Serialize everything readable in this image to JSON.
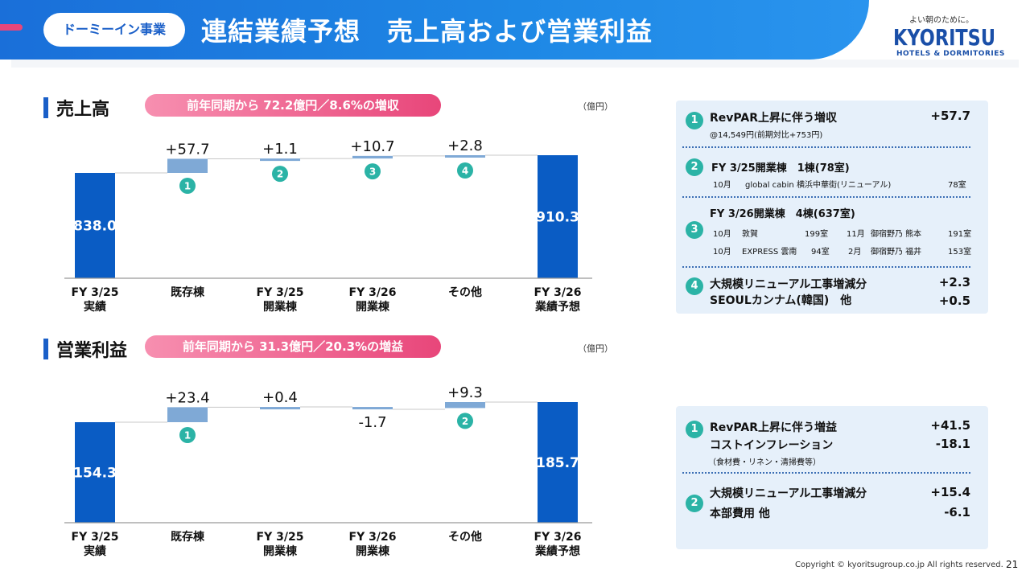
{
  "header": {
    "section": "ドーミーイン事業",
    "title": "連結業績予想　売上高および営業利益"
  },
  "logo": {
    "tagline": "よい朝のために。",
    "name": "KYORITSU",
    "sub": "HOTELS & DORMITORIES"
  },
  "colors": {
    "bar_total": "#0a5cc4",
    "bar_delta": "#7fa9d6",
    "accent_pink": "#e8467a",
    "circle": "#2bb3a6"
  },
  "chart_data": [
    {
      "type": "bar",
      "title": "売上高",
      "growth": "前年同期から 72.2億円／8.6%の増収",
      "unit": "（億円）",
      "categories": [
        "FY 3/25\n実績",
        "既存棟",
        "FY 3/25\n開業棟",
        "FY 3/26\n開業棟",
        "その他",
        "FY 3/26\n業績予想"
      ],
      "values": [
        838.0,
        57.7,
        1.1,
        10.7,
        2.8,
        910.3
      ],
      "value_labels": [
        "838.0",
        "+57.7",
        "+1.1",
        "+10.7",
        "+2.8",
        "910.3"
      ],
      "markers": [
        null,
        "1",
        "2",
        "3",
        "4",
        null
      ],
      "waterfall": true,
      "ylim": [
        0,
        950
      ]
    },
    {
      "type": "bar",
      "title": "営業利益",
      "growth": "前年同期から 31.3億円／20.3%の増益",
      "unit": "（億円）",
      "categories": [
        "FY 3/25\n実績",
        "既存棟",
        "FY 3/25\n開業棟",
        "FY 3/26\n開業棟",
        "その他",
        "FY 3/26\n業績予想"
      ],
      "values": [
        154.3,
        23.4,
        0.4,
        -1.7,
        9.3,
        185.7
      ],
      "value_labels": [
        "154.3",
        "+23.4",
        "+0.4",
        "-1.7",
        "+9.3",
        "185.7"
      ],
      "markers": [
        null,
        "1",
        null,
        null,
        "2",
        null
      ],
      "waterfall": true,
      "ylim": [
        0,
        195
      ]
    }
  ],
  "notes_sales": {
    "items": [
      {
        "num": "1",
        "title": "RevPAR上昇に伴う増収",
        "value": "+57.7",
        "sub": "@14,549円(前期対比+753円)"
      },
      {
        "num": "2",
        "title": "FY 3/25開業棟　1棟(78室)",
        "rows": [
          [
            "10月",
            "global cabin 横浜中華街(リニューアル)",
            "78室"
          ]
        ]
      },
      {
        "num": "3",
        "title": "FY 3/26開業棟　4棟(637室)",
        "rows": [
          [
            "10月",
            "敦賀",
            "199室",
            "11月",
            "御宿野乃 熊本",
            "191室"
          ],
          [
            "10月",
            "EXPRESS 雲南",
            "94室",
            "2月",
            "御宿野乃 福井",
            "153室"
          ]
        ]
      },
      {
        "num": "4",
        "title": "大規模リニューアル工事増減分",
        "value": "+2.3",
        "title2": "SEOULカンナム(韓国)　他",
        "value2": "+0.5"
      }
    ]
  },
  "notes_profit": {
    "items": [
      {
        "num": "1",
        "title": "RevPAR上昇に伴う増益",
        "value": "+41.5",
        "title2": "コストインフレーション",
        "value2": "-18.1",
        "sub": "（食材費・リネン・清掃費等）"
      },
      {
        "num": "2",
        "title": "大規模リニューアル工事増減分",
        "value": "+15.4",
        "title2": "本部費用 他",
        "value2": "-6.1"
      }
    ]
  },
  "footer": {
    "copyright": "Copyright © kyoritsugroup.co.jp All rights reserved.",
    "page": "21"
  }
}
